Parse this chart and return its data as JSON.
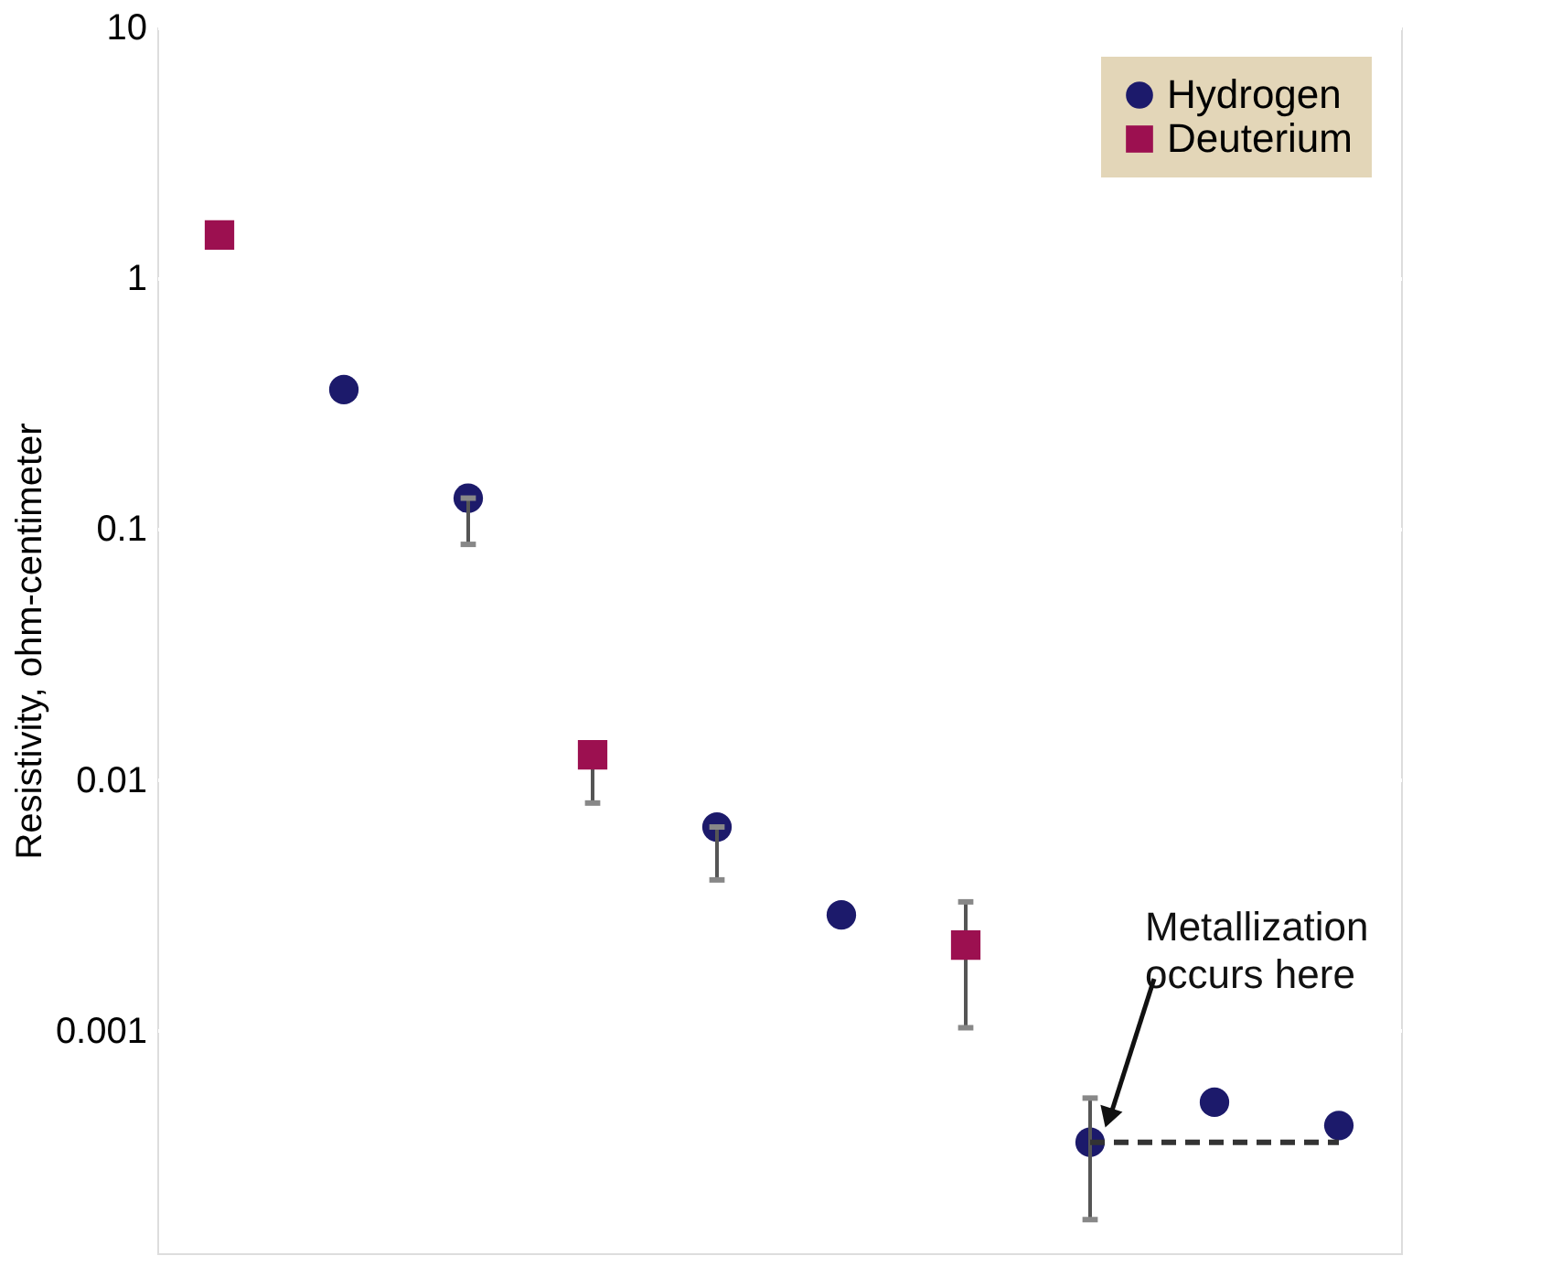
{
  "chart_data": {
    "type": "scatter",
    "ylabel": "Resistivity, ohm-centimeter",
    "categories": [
      null,
      null,
      null,
      null,
      null,
      null,
      null,
      null,
      null,
      null
    ],
    "series": [
      {
        "name": "Hydrogen",
        "color": "#1c1a6b",
        "marker": "circle",
        "values": [
          null,
          0.36,
          0.133,
          null,
          0.0065,
          0.0029,
          null,
          0.00036,
          0.00052,
          0.00042
        ],
        "errors": [
          null,
          null,
          [
            0.087,
            0.133
          ],
          null,
          [
            0.004,
            0.0065
          ],
          null,
          null,
          [
            0.000177,
            0.00054
          ],
          null,
          null
        ]
      },
      {
        "name": "Deuterium",
        "color": "#9c1050",
        "marker": "square",
        "values": [
          1.49,
          null,
          null,
          0.0126,
          null,
          null,
          0.0022,
          null,
          null,
          null
        ],
        "errors": [
          null,
          null,
          null,
          [
            0.0081,
            0.0126
          ],
          null,
          null,
          [
            0.00103,
            0.00327
          ],
          null,
          null,
          null
        ]
      },
      {
        "type": "line",
        "color": "#333333",
        "line_style": "dashed",
        "marker": "none",
        "values": [
          null,
          null,
          null,
          null,
          null,
          null,
          null,
          0.00036,
          0.00036,
          0.00036
        ]
      }
    ],
    "annotations": [
      "Metallization\noccurs here"
    ],
    "log": "y",
    "ylim": [
      0.00013,
      10
    ],
    "yticks": [
      0.001,
      0.01,
      0.1,
      1,
      10
    ],
    "grid": "y",
    "legend": "top right"
  }
}
